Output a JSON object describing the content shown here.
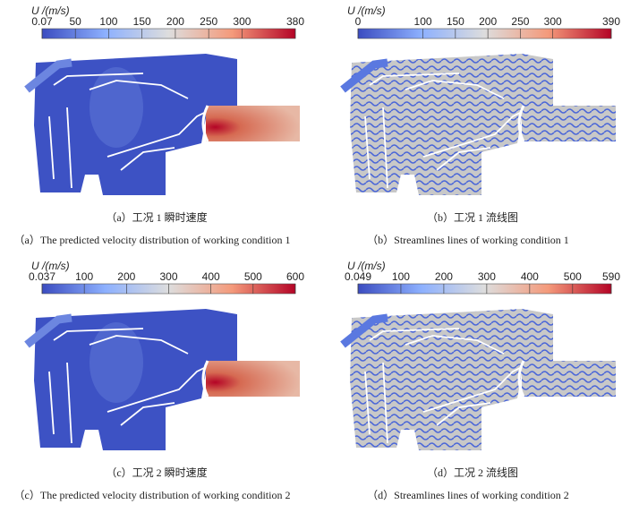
{
  "panels": [
    {
      "colorbar": {
        "label": "U /(m/s)",
        "ticks": [
          0.07,
          50,
          100,
          150,
          200,
          250,
          300,
          380
        ]
      },
      "caption_zh": "（a）工况 1 瞬时速度",
      "caption_en": "（a）The predicted velocity distribution of working condition 1"
    },
    {
      "colorbar": {
        "label": "U /(m/s)",
        "ticks": [
          0,
          100,
          150,
          200,
          250,
          300,
          390
        ]
      },
      "caption_zh": "（b）工况 1 流线图",
      "caption_en": "（b）Streamlines lines of working condition 1"
    },
    {
      "colorbar": {
        "label": "U /(m/s)",
        "ticks": [
          0.037,
          100,
          200,
          300,
          400,
          500,
          600
        ]
      },
      "caption_zh": "（c）工况 2 瞬时速度",
      "caption_en": "（c）The predicted velocity distribution of working condition 2"
    },
    {
      "colorbar": {
        "label": "U /(m/s)",
        "ticks": [
          0.049,
          100,
          200,
          300,
          400,
          500,
          590
        ]
      },
      "caption_zh": "（d）工况 2 流线图",
      "caption_en": "（d）Streamlines lines of working condition 2"
    }
  ]
}
